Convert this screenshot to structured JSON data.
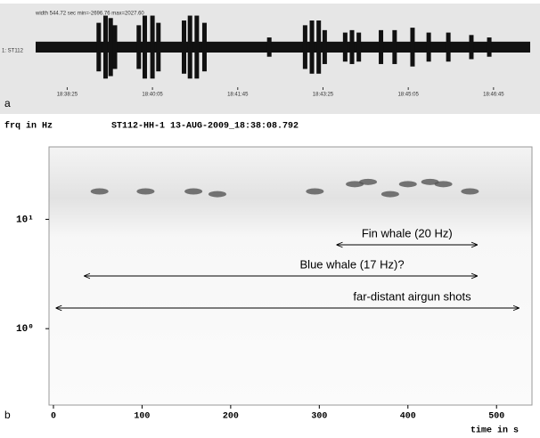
{
  "chart_data": [
    {
      "type": "waveform",
      "panel_label": "a",
      "header": "width 544.72 sec  min=-2696.76 max=2027.60",
      "trace_label": "1: ST112",
      "xlim": [
        0,
        580
      ],
      "ylim": [
        -2696.76,
        2027.6
      ],
      "xticks": [
        {
          "value": 37,
          "label": "18:38:25"
        },
        {
          "value": 137,
          "label": "18:40:05"
        },
        {
          "value": 237,
          "label": "18:41:45"
        },
        {
          "value": 337,
          "label": "18:43:25"
        },
        {
          "value": 437,
          "label": "18:45:05"
        },
        {
          "value": 537,
          "label": "18:46:45"
        }
      ],
      "noise_level": 400,
      "burst_times": [
        74,
        82,
        88,
        93,
        121,
        128,
        137,
        144,
        174,
        181,
        189,
        198,
        274,
        316,
        324,
        332,
        339,
        363,
        371,
        379,
        405,
        421,
        442,
        461,
        484,
        511,
        532
      ],
      "burst_amplitudes": [
        1790,
        2320,
        2140,
        1610,
        1610,
        2320,
        2320,
        1790,
        1960,
        2320,
        2320,
        1790,
        710,
        1610,
        1960,
        1960,
        1250,
        1070,
        1250,
        1070,
        1250,
        1250,
        1430,
        1070,
        1070,
        890,
        710
      ],
      "color": "#111111"
    },
    {
      "type": "spectrogram",
      "panel_label": "b",
      "title": "ST112-HH-1 13-AUG-2009_18:38:08.792",
      "y_label": "frq in Hz",
      "x_label": "time in s",
      "xlim": [
        -5,
        540
      ],
      "ylim": [
        0.2,
        46
      ],
      "log_y": true,
      "xticks": [
        0,
        100,
        200,
        300,
        400,
        500
      ],
      "yticks": [
        {
          "value": 1,
          "label": "10⁰"
        },
        {
          "value": 10,
          "label": "10¹"
        }
      ],
      "call_times": [
        52,
        104,
        158,
        295,
        185,
        340,
        355,
        380,
        400,
        425,
        440,
        470
      ],
      "call_freqs": [
        18,
        18,
        18,
        18,
        17,
        21,
        22,
        17,
        21,
        22,
        21,
        18
      ],
      "annotations": [
        {
          "text": "Fin whale (20 Hz)",
          "t_start": 320,
          "t_end": 478
        },
        {
          "text": "Blue whale (17 Hz)?",
          "t_start": 35,
          "t_end": 478
        },
        {
          "text": "far-distant airgun shots",
          "t_start": 3,
          "t_end": 525
        }
      ]
    }
  ]
}
